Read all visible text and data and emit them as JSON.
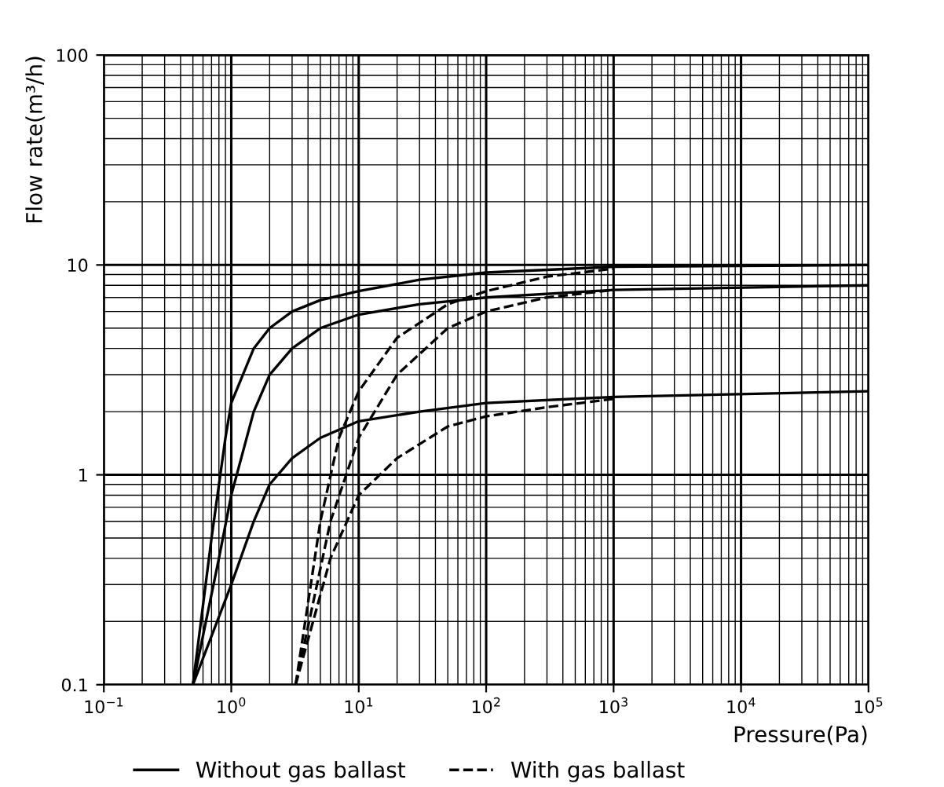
{
  "chart_data": {
    "type": "line",
    "xlabel": "Pressure(Pa)",
    "ylabel": "Flow rate(m³/h)",
    "log": "xy",
    "grid": true,
    "legend": "bottom",
    "xlim": [
      0.1,
      100000
    ],
    "ylim": [
      0.1,
      100
    ],
    "xticks": [
      {
        "value": 0.1,
        "label": "10$^{−1}$"
      },
      {
        "value": 1,
        "label": "10$^{0}$"
      },
      {
        "value": 10,
        "label": "10$^{1}$"
      },
      {
        "value": 100,
        "label": "10$^{2}$"
      },
      {
        "value": 1000,
        "label": "10$^{3}$"
      },
      {
        "value": 10000,
        "label": "10$^{4}$"
      },
      {
        "value": 100000,
        "label": "10$^{5}$"
      }
    ],
    "yticks": [
      0.1,
      1,
      10,
      100
    ],
    "series": [
      {
        "name": "Without gas ballast",
        "color": "#000000",
        "line_style": "solid",
        "x": [
          0.5,
          0.7,
          0.9,
          1,
          1.5,
          2,
          3,
          5,
          10,
          30,
          100,
          1000,
          100000
        ],
        "values": [
          0.1,
          0.5,
          1.5,
          2.2,
          4,
          5,
          6,
          6.8,
          7.5,
          8.5,
          9.2,
          9.8,
          10
        ]
      },
      {
        "color": "#000000",
        "line_style": "solid",
        "x": [
          0.5,
          0.8,
          1,
          1.5,
          2,
          3,
          5,
          10,
          30,
          100,
          1000,
          100000
        ],
        "values": [
          0.1,
          0.4,
          0.8,
          2,
          3,
          4,
          5,
          5.8,
          6.5,
          7,
          7.6,
          8
        ]
      },
      {
        "color": "#000000",
        "line_style": "solid",
        "x": [
          0.5,
          1,
          1.5,
          2,
          3,
          5,
          10,
          30,
          100,
          1000,
          100000
        ],
        "values": [
          0.1,
          0.3,
          0.6,
          0.9,
          1.2,
          1.5,
          1.8,
          2,
          2.2,
          2.35,
          2.5
        ]
      },
      {
        "name": "With gas ballast",
        "color": "#000000",
        "line_style": "dashed",
        "x": [
          3.2,
          5,
          7,
          10,
          20,
          50,
          100,
          300,
          1000
        ],
        "values": [
          0.1,
          0.6,
          1.5,
          2.5,
          4.5,
          6.5,
          7.5,
          8.8,
          9.6
        ]
      },
      {
        "color": "#000000",
        "line_style": "dashed",
        "x": [
          3.2,
          6,
          10,
          20,
          50,
          100,
          300,
          1000
        ],
        "values": [
          0.1,
          0.6,
          1.5,
          3,
          5,
          6,
          7,
          7.6
        ]
      },
      {
        "color": "#000000",
        "line_style": "dashed",
        "x": [
          3.2,
          6,
          10,
          20,
          50,
          100,
          300,
          1000
        ],
        "values": [
          0.1,
          0.4,
          0.8,
          1.2,
          1.7,
          1.9,
          2.1,
          2.3
        ]
      }
    ]
  }
}
